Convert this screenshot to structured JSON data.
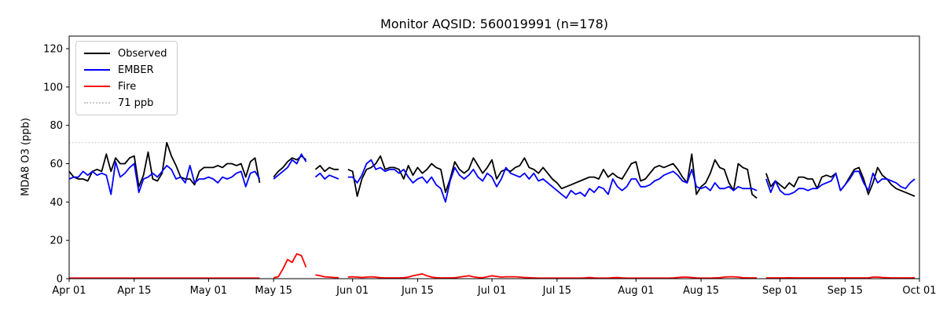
{
  "title": "Monitor AQSID: 560019991 (n=178)",
  "legend": {
    "items": [
      {
        "label": "Observed",
        "color": "#000000",
        "style": "solid"
      },
      {
        "label": "EMBER",
        "color": "#0000ff",
        "style": "solid"
      },
      {
        "label": "Fire",
        "color": "#ff0000",
        "style": "solid"
      },
      {
        "label": "71 ppb",
        "color": "#c9c9c9",
        "style": "dotted"
      }
    ]
  },
  "chart_data": {
    "type": "line",
    "title": "Monitor AQSID: 560019991 (n=178)",
    "xlabel": "",
    "ylabel": "MDA8 O3 (ppb)",
    "y_ticks": [
      0,
      20,
      40,
      60,
      80,
      100,
      120
    ],
    "y_scale_max_at_top": 126.5,
    "ylim": [
      0,
      126.5
    ],
    "grid": false,
    "legend_position": "upper left",
    "threshold": {
      "value": 71,
      "label": "71 ppb",
      "color": "#c9c9c9",
      "linestyle": "dotted"
    },
    "x_unit": "days since Apr 01",
    "x_total_days": 183,
    "x_ticks": [
      {
        "day": 0,
        "label": "Apr 01"
      },
      {
        "day": 14,
        "label": "Apr 15"
      },
      {
        "day": 30,
        "label": "May 01"
      },
      {
        "day": 44,
        "label": "May 15"
      },
      {
        "day": 61,
        "label": "Jun 01"
      },
      {
        "day": 75,
        "label": "Jun 15"
      },
      {
        "day": 91,
        "label": "Jul 01"
      },
      {
        "day": 105,
        "label": "Jul 15"
      },
      {
        "day": 122,
        "label": "Aug 01"
      },
      {
        "day": 136,
        "label": "Aug 15"
      },
      {
        "day": 153,
        "label": "Sep 01"
      },
      {
        "day": 167,
        "label": "Sep 15"
      },
      {
        "day": 183,
        "label": "Oct 01"
      }
    ],
    "series": [
      {
        "name": "Observed",
        "color": "#000000",
        "values": [
          56,
          53,
          52,
          52,
          51,
          56,
          57,
          56,
          65,
          56,
          63,
          60,
          60,
          63,
          64,
          48,
          54,
          66,
          52,
          51,
          55,
          71,
          64,
          59,
          53,
          52,
          52,
          49,
          56,
          58,
          58,
          58,
          59,
          58,
          60,
          60,
          59,
          60,
          53,
          61,
          63,
          50,
          null,
          null,
          53,
          56,
          58,
          61,
          63,
          62,
          64,
          62,
          null,
          57,
          59,
          56,
          58,
          57,
          57,
          null,
          57,
          56,
          43,
          52,
          57,
          58,
          60,
          64,
          57,
          58,
          58,
          57,
          52,
          59,
          54,
          58,
          55,
          57,
          60,
          58,
          57,
          45,
          52,
          61,
          57,
          55,
          57,
          63,
          59,
          55,
          58,
          62,
          52,
          56,
          57,
          56,
          58,
          59,
          63,
          58,
          57,
          55,
          58,
          55,
          52,
          50,
          47,
          48,
          49,
          50,
          51,
          52,
          53,
          53,
          52,
          57,
          53,
          55,
          53,
          52,
          56,
          60,
          61,
          51,
          52,
          55,
          58,
          59,
          58,
          59,
          60,
          57,
          53,
          50,
          65,
          44,
          48,
          50,
          55,
          62,
          58,
          57,
          50,
          46,
          60,
          58,
          57,
          44,
          42,
          null,
          55,
          48,
          51,
          49,
          47,
          50,
          48,
          53,
          53,
          52,
          52,
          47,
          53,
          54,
          53,
          55,
          46,
          49,
          53,
          57,
          58,
          52,
          44,
          50,
          58,
          54,
          52,
          49,
          47,
          46,
          45,
          44,
          43
        ]
      },
      {
        "name": "EMBER",
        "color": "#0000ff",
        "values": [
          52,
          53,
          53,
          56,
          54,
          56,
          54,
          55,
          54,
          44,
          61,
          53,
          55,
          58,
          60,
          45,
          52,
          53,
          55,
          53,
          56,
          59,
          57,
          52,
          53,
          50,
          59,
          50,
          52,
          52,
          53,
          52,
          50,
          53,
          52,
          53,
          55,
          56,
          48,
          55,
          56,
          52,
          null,
          null,
          52,
          54,
          56,
          58,
          62,
          60,
          65,
          61,
          null,
          53,
          55,
          52,
          54,
          53,
          52,
          null,
          53,
          53,
          50,
          54,
          60,
          62,
          57,
          58,
          56,
          57,
          57,
          55,
          57,
          53,
          50,
          52,
          53,
          50,
          53,
          49,
          47,
          40,
          51,
          58,
          54,
          52,
          54,
          57,
          53,
          51,
          55,
          53,
          48,
          52,
          58,
          55,
          54,
          53,
          55,
          52,
          55,
          51,
          52,
          50,
          48,
          46,
          44,
          42,
          46,
          44,
          45,
          43,
          47,
          45,
          48,
          47,
          44,
          52,
          48,
          46,
          48,
          52,
          52,
          48,
          48,
          49,
          51,
          52,
          54,
          55,
          56,
          54,
          51,
          50,
          57,
          48,
          47,
          48,
          46,
          50,
          47,
          47,
          48,
          46,
          48,
          47,
          47,
          47,
          46,
          null,
          52,
          45,
          51,
          46,
          44,
          44,
          45,
          47,
          47,
          46,
          47,
          47,
          49,
          50,
          51,
          55,
          46,
          49,
          52,
          56,
          56,
          50,
          46,
          55,
          50,
          52,
          52,
          51,
          50,
          48,
          47,
          50,
          52
        ]
      },
      {
        "name": "Fire",
        "color": "#ff0000",
        "values": [
          0.3,
          0.3,
          0.3,
          0.3,
          0.3,
          0.3,
          0.3,
          0.3,
          0.3,
          0.3,
          0.3,
          0.3,
          0.3,
          0.3,
          0.3,
          0.3,
          0.3,
          0.3,
          0.3,
          0.3,
          0.3,
          0.3,
          0.3,
          0.3,
          0.3,
          0.3,
          0.3,
          0.3,
          0.3,
          0.3,
          0.3,
          0.3,
          0.3,
          0.3,
          0.3,
          0.3,
          0.3,
          0.3,
          0.3,
          0.3,
          0.3,
          0.3,
          null,
          null,
          0.5,
          1,
          5,
          10,
          8.5,
          13,
          12,
          6,
          null,
          2,
          1.5,
          1,
          0.8,
          0.6,
          0.5,
          null,
          0.8,
          1,
          0.8,
          0.6,
          0.8,
          1,
          0.8,
          0.5,
          0.4,
          0.4,
          0.4,
          0.4,
          0.5,
          0.8,
          1.5,
          2,
          2.5,
          1.5,
          0.8,
          0.5,
          0.4,
          0.4,
          0.4,
          0.5,
          0.8,
          1.2,
          1.5,
          1,
          0.6,
          0.5,
          1,
          1.5,
          1.2,
          0.8,
          1,
          1,
          1,
          0.8,
          0.6,
          0.5,
          0.4,
          0.3,
          0.3,
          0.3,
          0.3,
          0.3,
          0.3,
          0.3,
          0.3,
          0.3,
          0.3,
          0.4,
          0.6,
          0.4,
          0.3,
          0.3,
          0.3,
          0.5,
          0.6,
          0.4,
          0.3,
          0.3,
          0.3,
          0.3,
          0.3,
          0.3,
          0.3,
          0.3,
          0.3,
          0.3,
          0.4,
          0.6,
          0.8,
          0.8,
          0.6,
          0.4,
          0.3,
          0.3,
          0.3,
          0.4,
          0.5,
          0.8,
          1,
          1,
          0.8,
          0.5,
          0.4,
          0.4,
          0.4,
          null,
          0.4,
          0.4,
          0.4,
          0.4,
          0.4,
          0.5,
          0.4,
          0.4,
          0.4,
          0.4,
          0.4,
          0.4,
          0.4,
          0.4,
          0.4,
          0.4,
          0.4,
          0.4,
          0.4,
          0.4,
          0.4,
          0.4,
          0.4,
          0.8,
          0.8,
          0.6,
          0.5,
          0.4,
          0.4,
          0.4,
          0.4,
          0.4,
          0.5
        ]
      }
    ]
  }
}
